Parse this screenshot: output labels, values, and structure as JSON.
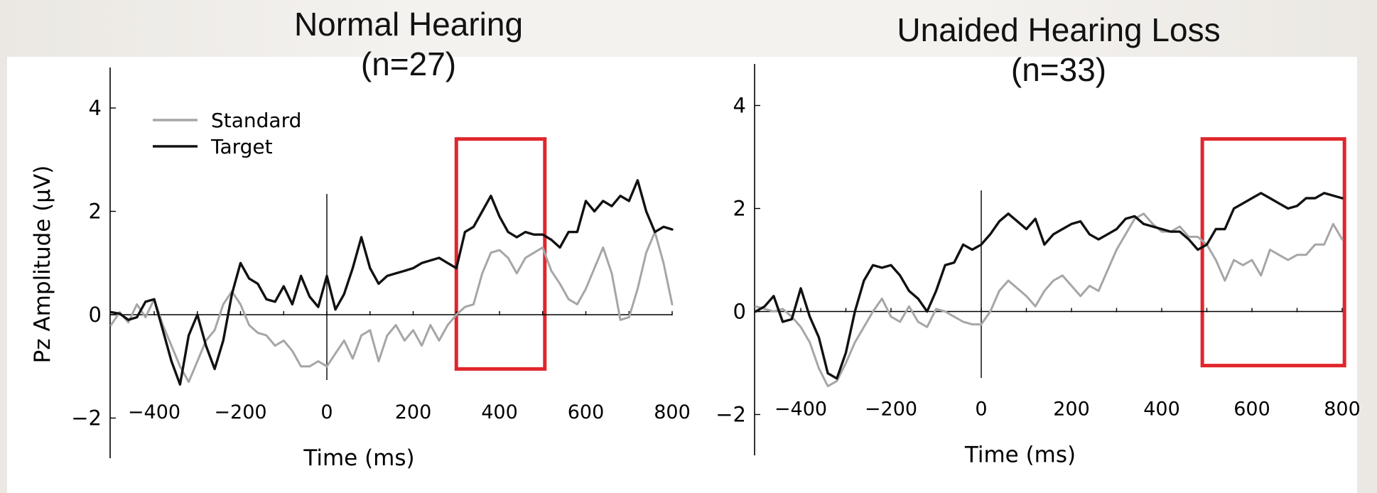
{
  "charts": [
    {
      "id": "nh",
      "title": "Normal Hearing",
      "subtitle": "(n=27)",
      "ylabel": "Pz Amplitude (μV)",
      "xlabel": "Time (ms)",
      "xticks": [
        "−400",
        "−200",
        "0",
        "200",
        "400",
        "600",
        "800"
      ],
      "yticks": [
        "4",
        "2",
        "0",
        "−2"
      ],
      "legend": [
        "Standard",
        "Target"
      ]
    },
    {
      "id": "hl",
      "title": "Unaided Hearing Loss",
      "subtitle": "(n=33)",
      "ylabel": "",
      "xlabel": "Time (ms)",
      "xticks": [
        "−400",
        "−200",
        "0",
        "200",
        "400",
        "600",
        "800"
      ],
      "yticks": [
        "4",
        "2",
        "0",
        "−2"
      ],
      "legend": []
    }
  ],
  "chart_data": [
    {
      "type": "line",
      "title": "Normal Hearing (n=27)",
      "xlabel": "Time (ms)",
      "ylabel": "Pz Amplitude (μV)",
      "xlim": [
        -500,
        800
      ],
      "ylim": [
        -2.8,
        4.8
      ],
      "xticks": [
        -400,
        -200,
        0,
        200,
        400,
        600,
        800
      ],
      "yticks": [
        4,
        2,
        0,
        -2
      ],
      "grid": false,
      "legend_position": "top-left",
      "highlight_box": {
        "x": [
          300,
          505
        ],
        "y": [
          -1.05,
          3.4
        ],
        "color": "#e0262c"
      },
      "series": [
        {
          "name": "Standard",
          "color": "#a6a6a6",
          "x": [
            -500,
            -480,
            -460,
            -440,
            -420,
            -400,
            -380,
            -360,
            -340,
            -320,
            -300,
            -280,
            -260,
            -240,
            -220,
            -200,
            -180,
            -160,
            -140,
            -120,
            -100,
            -80,
            -60,
            -40,
            -20,
            0,
            20,
            40,
            60,
            80,
            100,
            120,
            140,
            160,
            180,
            200,
            220,
            240,
            260,
            280,
            300,
            320,
            340,
            360,
            380,
            400,
            420,
            440,
            460,
            480,
            500,
            520,
            540,
            560,
            580,
            600,
            620,
            640,
            660,
            680,
            700,
            720,
            740,
            760,
            780,
            800
          ],
          "y": [
            -0.2,
            0.05,
            -0.15,
            0.2,
            -0.05,
            0.3,
            -0.2,
            -0.6,
            -1.0,
            -1.3,
            -0.9,
            -0.5,
            -0.3,
            0.2,
            0.45,
            0.2,
            -0.2,
            -0.35,
            -0.4,
            -0.6,
            -0.5,
            -0.7,
            -1.0,
            -1.0,
            -0.9,
            -1.0,
            -0.75,
            -0.5,
            -0.85,
            -0.4,
            -0.3,
            -0.9,
            -0.4,
            -0.2,
            -0.5,
            -0.3,
            -0.6,
            -0.2,
            -0.5,
            -0.2,
            0.0,
            0.15,
            0.2,
            0.8,
            1.2,
            1.25,
            1.1,
            0.8,
            1.1,
            1.2,
            1.3,
            0.85,
            0.6,
            0.3,
            0.2,
            0.5,
            0.9,
            1.3,
            0.8,
            -0.1,
            -0.05,
            0.5,
            1.2,
            1.6,
            1.0,
            0.2
          ]
        },
        {
          "name": "Target",
          "color": "#111111",
          "x": [
            -500,
            -480,
            -460,
            -440,
            -420,
            -400,
            -380,
            -360,
            -340,
            -320,
            -300,
            -280,
            -260,
            -240,
            -220,
            -200,
            -180,
            -160,
            -140,
            -120,
            -100,
            -80,
            -60,
            -40,
            -20,
            0,
            20,
            40,
            60,
            80,
            100,
            120,
            140,
            160,
            180,
            200,
            220,
            240,
            260,
            280,
            300,
            320,
            340,
            360,
            380,
            400,
            420,
            440,
            460,
            480,
            500,
            520,
            540,
            560,
            580,
            600,
            620,
            640,
            660,
            680,
            700,
            720,
            740,
            760,
            780,
            800
          ],
          "y": [
            0.05,
            0.02,
            -0.1,
            -0.05,
            0.25,
            0.3,
            -0.3,
            -0.9,
            -1.35,
            -0.4,
            0.0,
            -0.6,
            -1.05,
            -0.5,
            0.4,
            1.0,
            0.7,
            0.6,
            0.3,
            0.25,
            0.55,
            0.2,
            0.75,
            0.35,
            0.15,
            0.75,
            0.1,
            0.4,
            0.9,
            1.5,
            0.9,
            0.6,
            0.75,
            0.8,
            0.85,
            0.9,
            1.0,
            1.05,
            1.1,
            1.0,
            0.9,
            1.6,
            1.7,
            2.0,
            2.3,
            1.9,
            1.6,
            1.5,
            1.6,
            1.55,
            1.55,
            1.45,
            1.3,
            1.6,
            1.6,
            2.2,
            2.0,
            2.2,
            2.1,
            2.3,
            2.2,
            2.6,
            2.0,
            1.6,
            1.7,
            1.65
          ]
        }
      ]
    },
    {
      "type": "line",
      "title": "Unaided Hearing Loss (n=33)",
      "xlabel": "Time (ms)",
      "ylabel": "",
      "xlim": [
        -500,
        800
      ],
      "ylim": [
        -2.8,
        4.8
      ],
      "xticks": [
        -400,
        -200,
        0,
        200,
        400,
        600,
        800
      ],
      "yticks": [
        4,
        2,
        0,
        -2
      ],
      "grid": false,
      "highlight_box": {
        "x": [
          490,
          805
        ],
        "y": [
          -1.05,
          3.35
        ],
        "color": "#e0262c"
      },
      "series": [
        {
          "name": "Standard",
          "color": "#a6a6a6",
          "x": [
            -500,
            -480,
            -460,
            -440,
            -420,
            -400,
            -380,
            -360,
            -340,
            -320,
            -300,
            -280,
            -260,
            -240,
            -220,
            -200,
            -180,
            -160,
            -140,
            -120,
            -100,
            -80,
            -60,
            -40,
            -20,
            0,
            20,
            40,
            60,
            80,
            100,
            120,
            140,
            160,
            180,
            200,
            220,
            240,
            260,
            280,
            300,
            320,
            340,
            360,
            380,
            400,
            420,
            440,
            460,
            480,
            500,
            520,
            540,
            560,
            580,
            600,
            620,
            640,
            660,
            680,
            700,
            720,
            740,
            760,
            780,
            800
          ],
          "y": [
            0.1,
            0.05,
            0.0,
            0.05,
            -0.1,
            -0.3,
            -0.6,
            -1.1,
            -1.45,
            -1.35,
            -1.0,
            -0.6,
            -0.3,
            0.0,
            0.25,
            -0.1,
            -0.2,
            0.1,
            -0.2,
            -0.3,
            0.05,
            0.0,
            -0.1,
            -0.2,
            -0.25,
            -0.25,
            0.0,
            0.4,
            0.6,
            0.45,
            0.3,
            0.1,
            0.4,
            0.6,
            0.7,
            0.5,
            0.3,
            0.5,
            0.4,
            0.8,
            1.2,
            1.5,
            1.8,
            1.9,
            1.7,
            1.55,
            1.55,
            1.65,
            1.45,
            1.45,
            1.3,
            1.0,
            0.6,
            1.0,
            0.9,
            1.0,
            0.7,
            1.2,
            1.1,
            1.0,
            1.1,
            1.1,
            1.3,
            1.3,
            1.7,
            1.4
          ]
        },
        {
          "name": "Target",
          "color": "#111111",
          "x": [
            -500,
            -480,
            -460,
            -440,
            -420,
            -400,
            -380,
            -360,
            -340,
            -320,
            -300,
            -280,
            -260,
            -240,
            -220,
            -200,
            -180,
            -160,
            -140,
            -120,
            -100,
            -80,
            -60,
            -40,
            -20,
            0,
            20,
            40,
            60,
            80,
            100,
            120,
            140,
            160,
            180,
            200,
            220,
            240,
            260,
            280,
            300,
            320,
            340,
            360,
            380,
            400,
            420,
            440,
            460,
            480,
            500,
            520,
            540,
            560,
            580,
            600,
            620,
            640,
            660,
            680,
            700,
            720,
            740,
            760,
            780,
            800
          ],
          "y": [
            0.0,
            0.1,
            0.3,
            -0.2,
            -0.15,
            0.45,
            -0.1,
            -0.5,
            -1.2,
            -1.3,
            -0.8,
            0.0,
            0.6,
            0.9,
            0.85,
            0.9,
            0.7,
            0.4,
            0.25,
            0.0,
            0.4,
            0.9,
            0.95,
            1.3,
            1.2,
            1.3,
            1.5,
            1.75,
            1.9,
            1.75,
            1.6,
            1.8,
            1.3,
            1.5,
            1.6,
            1.7,
            1.75,
            1.5,
            1.4,
            1.5,
            1.6,
            1.8,
            1.85,
            1.7,
            1.65,
            1.6,
            1.55,
            1.55,
            1.4,
            1.2,
            1.3,
            1.6,
            1.6,
            2.0,
            2.1,
            2.2,
            2.3,
            2.2,
            2.1,
            2.0,
            2.05,
            2.2,
            2.2,
            2.3,
            2.25,
            2.2
          ]
        }
      ]
    }
  ]
}
